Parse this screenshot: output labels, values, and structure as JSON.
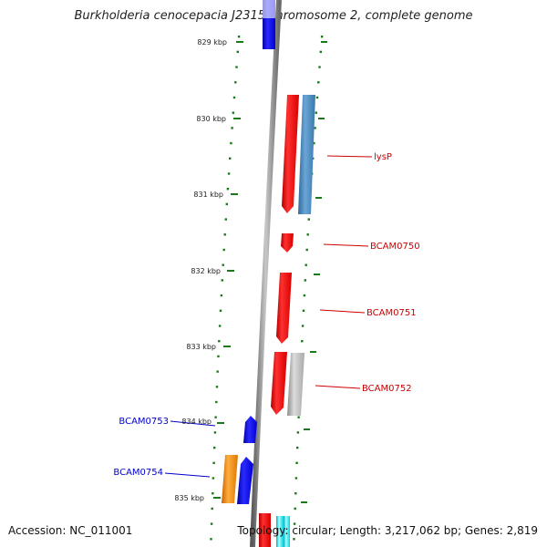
{
  "title": "Burkholderia cenocepacia J2315 chromosome 2, complete genome",
  "accession": "Accession: NC_011001",
  "summary": "Topology: circular; Length: 3,217,062 bp; Genes: 2,819",
  "ticks": [
    "829 kbp",
    "830 kbp",
    "831 kbp",
    "832 kbp",
    "833 kbp",
    "834 kbp",
    "835 kbp"
  ],
  "genes": [
    {
      "label": "lysP",
      "color": "#cc0000"
    },
    {
      "label": "BCAM0750",
      "color": "#cc0000"
    },
    {
      "label": "BCAM0751",
      "color": "#cc0000"
    },
    {
      "label": "BCAM0752",
      "color": "#cc0000"
    },
    {
      "label": "BCAM0753",
      "color": "#0000cc"
    },
    {
      "label": "BCAM0754",
      "color": "#0000cc"
    }
  ],
  "colors": {
    "forward_cds": "#ff0000",
    "reverse_cds": "#0000ff",
    "steelblue_feature": "#4682b4",
    "gray_feature": "#b4b4b4",
    "orange_feature": "#ff8c00",
    "cyan_feature": "#00e5ee",
    "backbone": "#7a7a7a",
    "tick_green": "#1a7a1a"
  }
}
